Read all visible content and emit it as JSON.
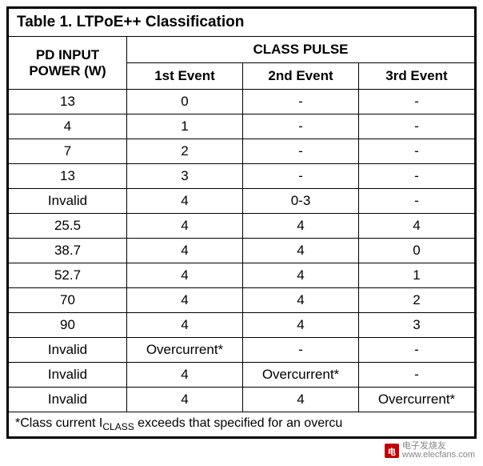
{
  "title": "Table 1. LTPoE++ Classification",
  "headers": {
    "pd_input_line1": "PD INPUT",
    "pd_input_line2": "POWER (W)",
    "class_pulse": "CLASS PULSE",
    "event1": "1st Event",
    "event2": "2nd Event",
    "event3": "3rd Event"
  },
  "rows": [
    {
      "pd": "13",
      "e1": "0",
      "e2": "-",
      "e3": "-"
    },
    {
      "pd": "4",
      "e1": "1",
      "e2": "-",
      "e3": "-"
    },
    {
      "pd": "7",
      "e1": "2",
      "e2": "-",
      "e3": "-"
    },
    {
      "pd": "13",
      "e1": "3",
      "e2": "-",
      "e3": "-"
    },
    {
      "pd": "Invalid",
      "e1": "4",
      "e2": "0-3",
      "e3": "-"
    },
    {
      "pd": "25.5",
      "e1": "4",
      "e2": "4",
      "e3": "4"
    },
    {
      "pd": "38.7",
      "e1": "4",
      "e2": "4",
      "e3": "0"
    },
    {
      "pd": "52.7",
      "e1": "4",
      "e2": "4",
      "e3": "1"
    },
    {
      "pd": "70",
      "e1": "4",
      "e2": "4",
      "e3": "2"
    },
    {
      "pd": "90",
      "e1": "4",
      "e2": "4",
      "e3": "3"
    },
    {
      "pd": "Invalid",
      "e1": "Overcurrent*",
      "e2": "-",
      "e3": "-"
    },
    {
      "pd": "Invalid",
      "e1": "4",
      "e2": "Overcurrent*",
      "e3": "-"
    },
    {
      "pd": "Invalid",
      "e1": "4",
      "e2": "4",
      "e3": "Overcurrent*"
    }
  ],
  "footnote": {
    "prefix": "*Class current I",
    "subscript": "CLASS",
    "suffix": " exceeds that specified for an overcu"
  },
  "watermark": {
    "logo_text": "电",
    "line1": "电子发烧友",
    "line2": "www.elecfans.com"
  }
}
